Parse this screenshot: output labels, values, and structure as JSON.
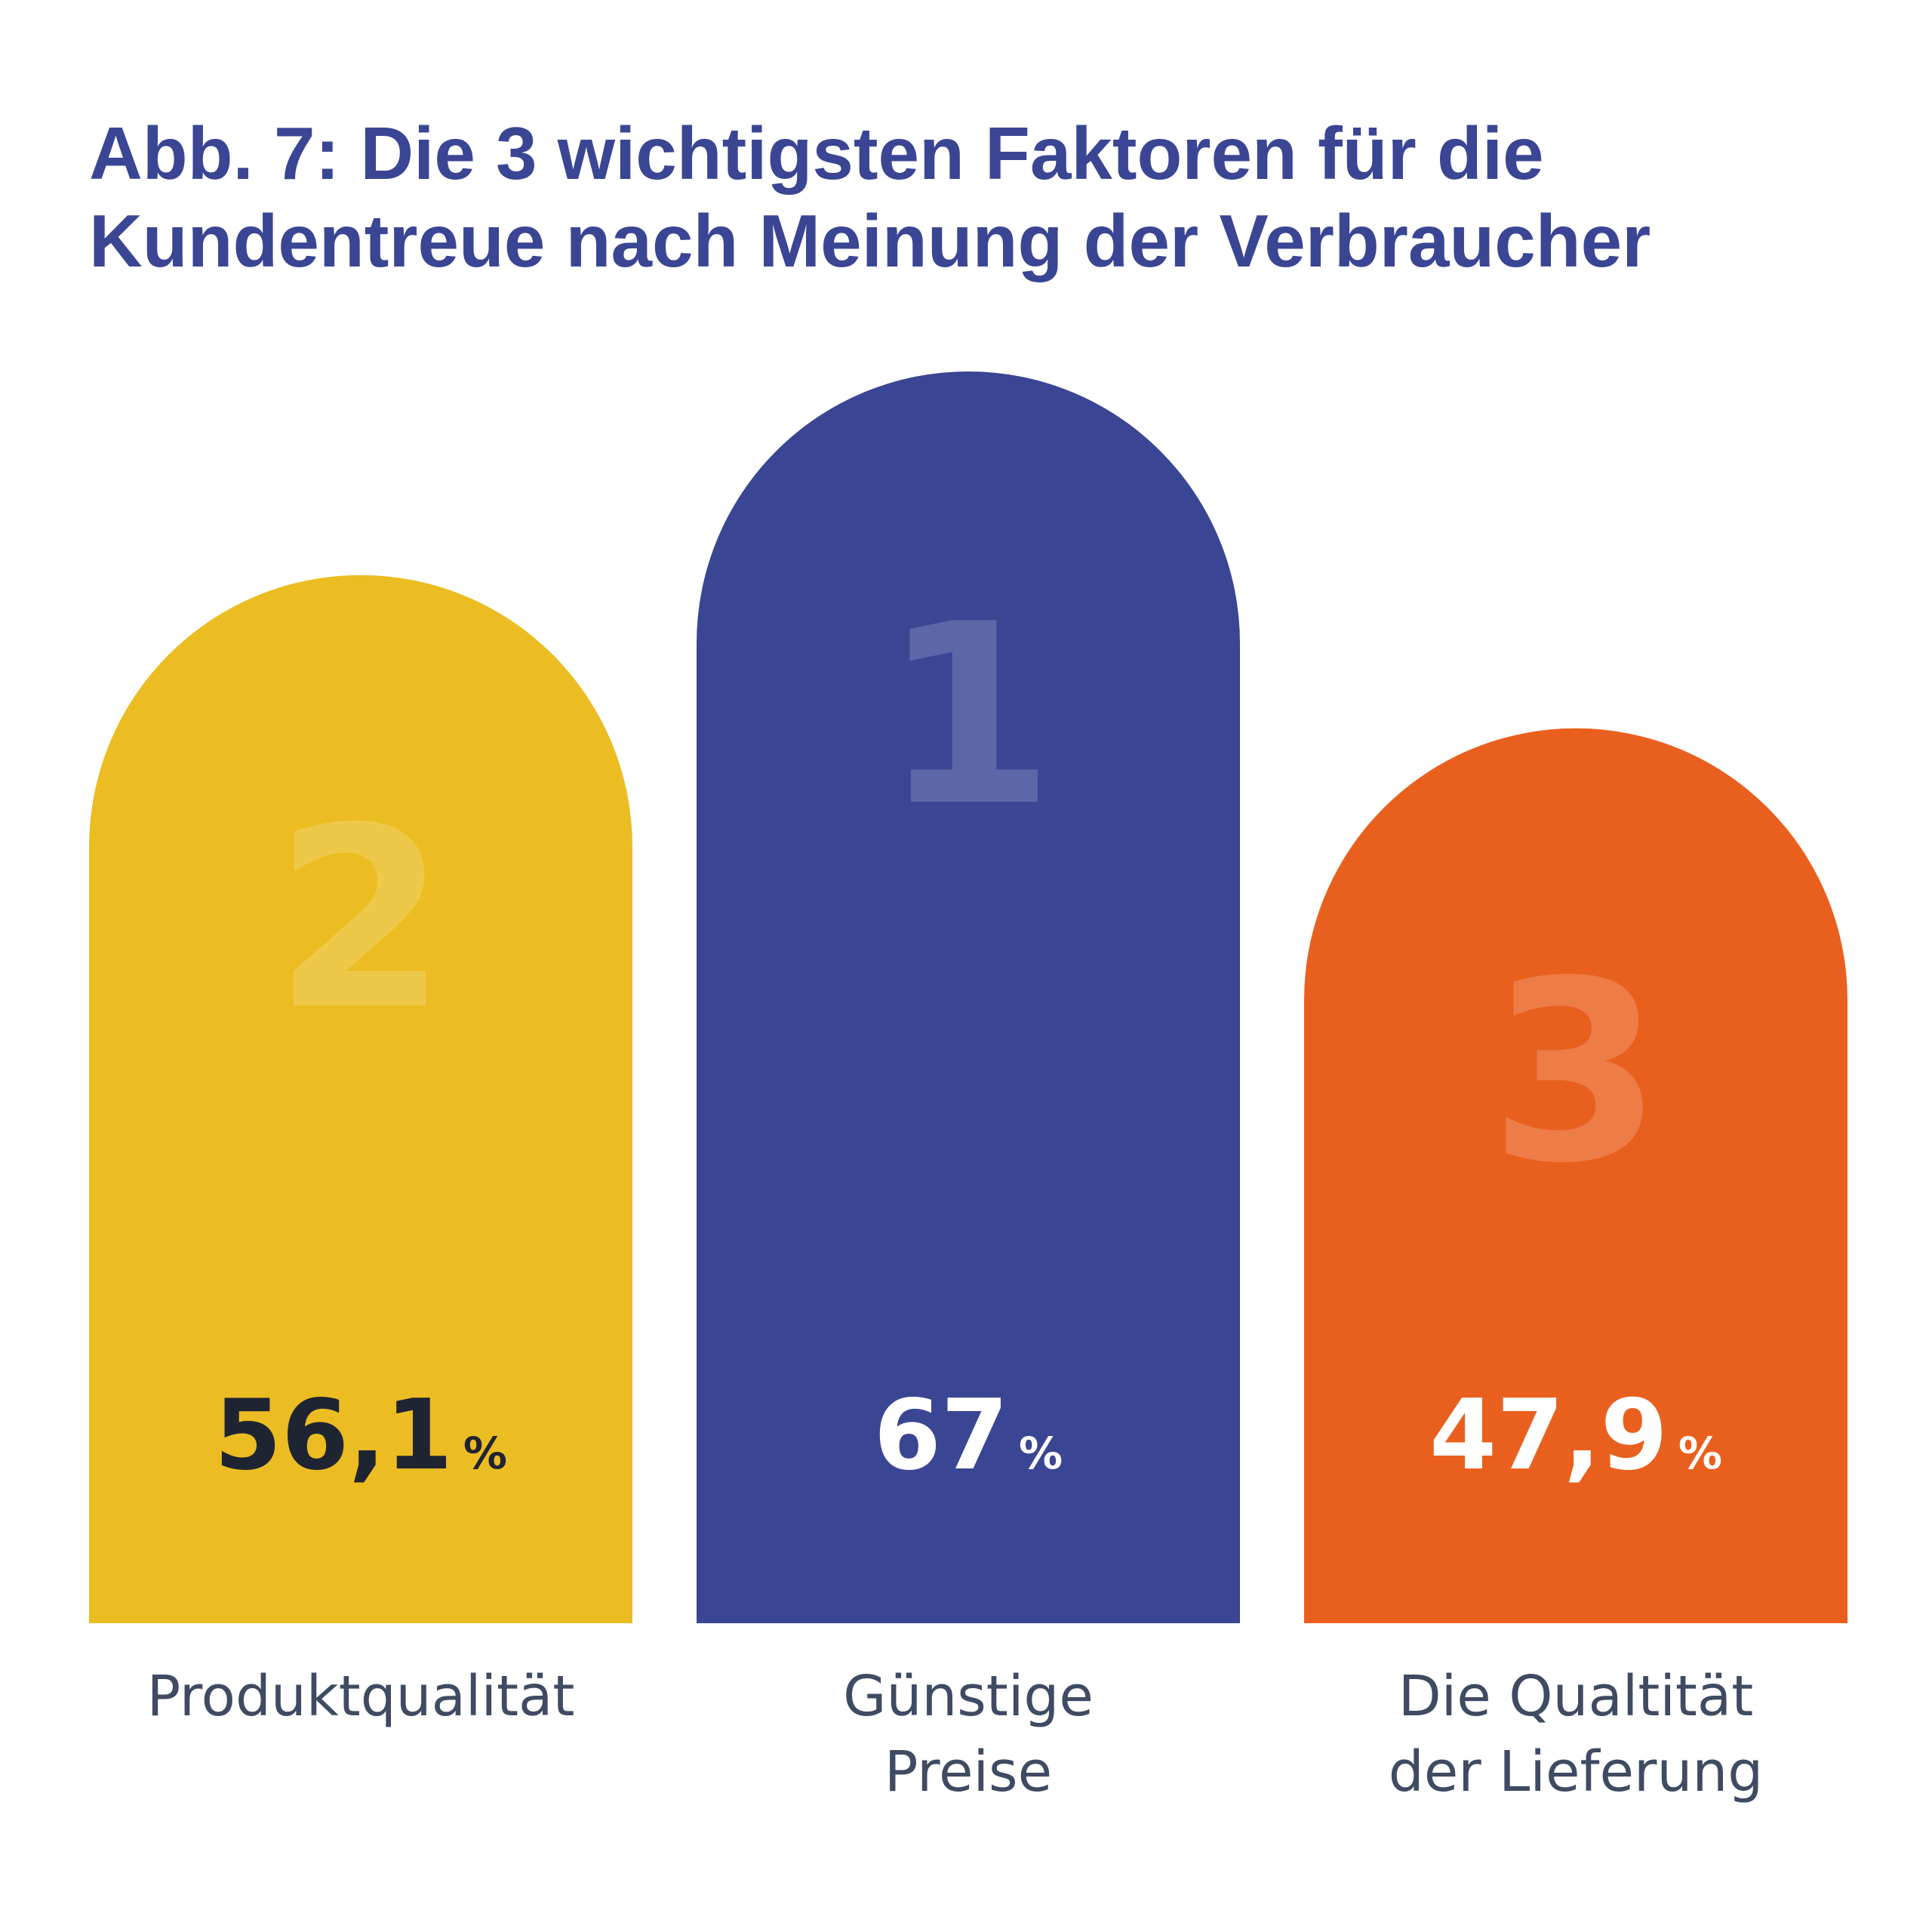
{
  "chart_data": {
    "type": "bar",
    "title_lines": [
      "Abb. 7: Die 3 wichtigsten Faktoren für die",
      "Kundentreue nach Meinung der Verbraucher"
    ],
    "unit": "%",
    "ylim": [
      0,
      67
    ],
    "bars": [
      {
        "category_lines": [
          "Produktqualität"
        ],
        "value": 56.1,
        "value_label": "56,1",
        "rank": "2",
        "color": "#ebbd22",
        "value_color": "#1f2433"
      },
      {
        "category_lines": [
          "Günstige",
          "Preise"
        ],
        "value": 67,
        "value_label": "67",
        "rank": "1",
        "color": "#3a4594",
        "value_color": "#ffffff"
      },
      {
        "category_lines": [
          "Die Qualtität",
          "der Lieferung"
        ],
        "value": 47.9,
        "value_label": "47,9",
        "rank": "3",
        "color": "#e9601e",
        "value_color": "#ffffff"
      }
    ]
  }
}
